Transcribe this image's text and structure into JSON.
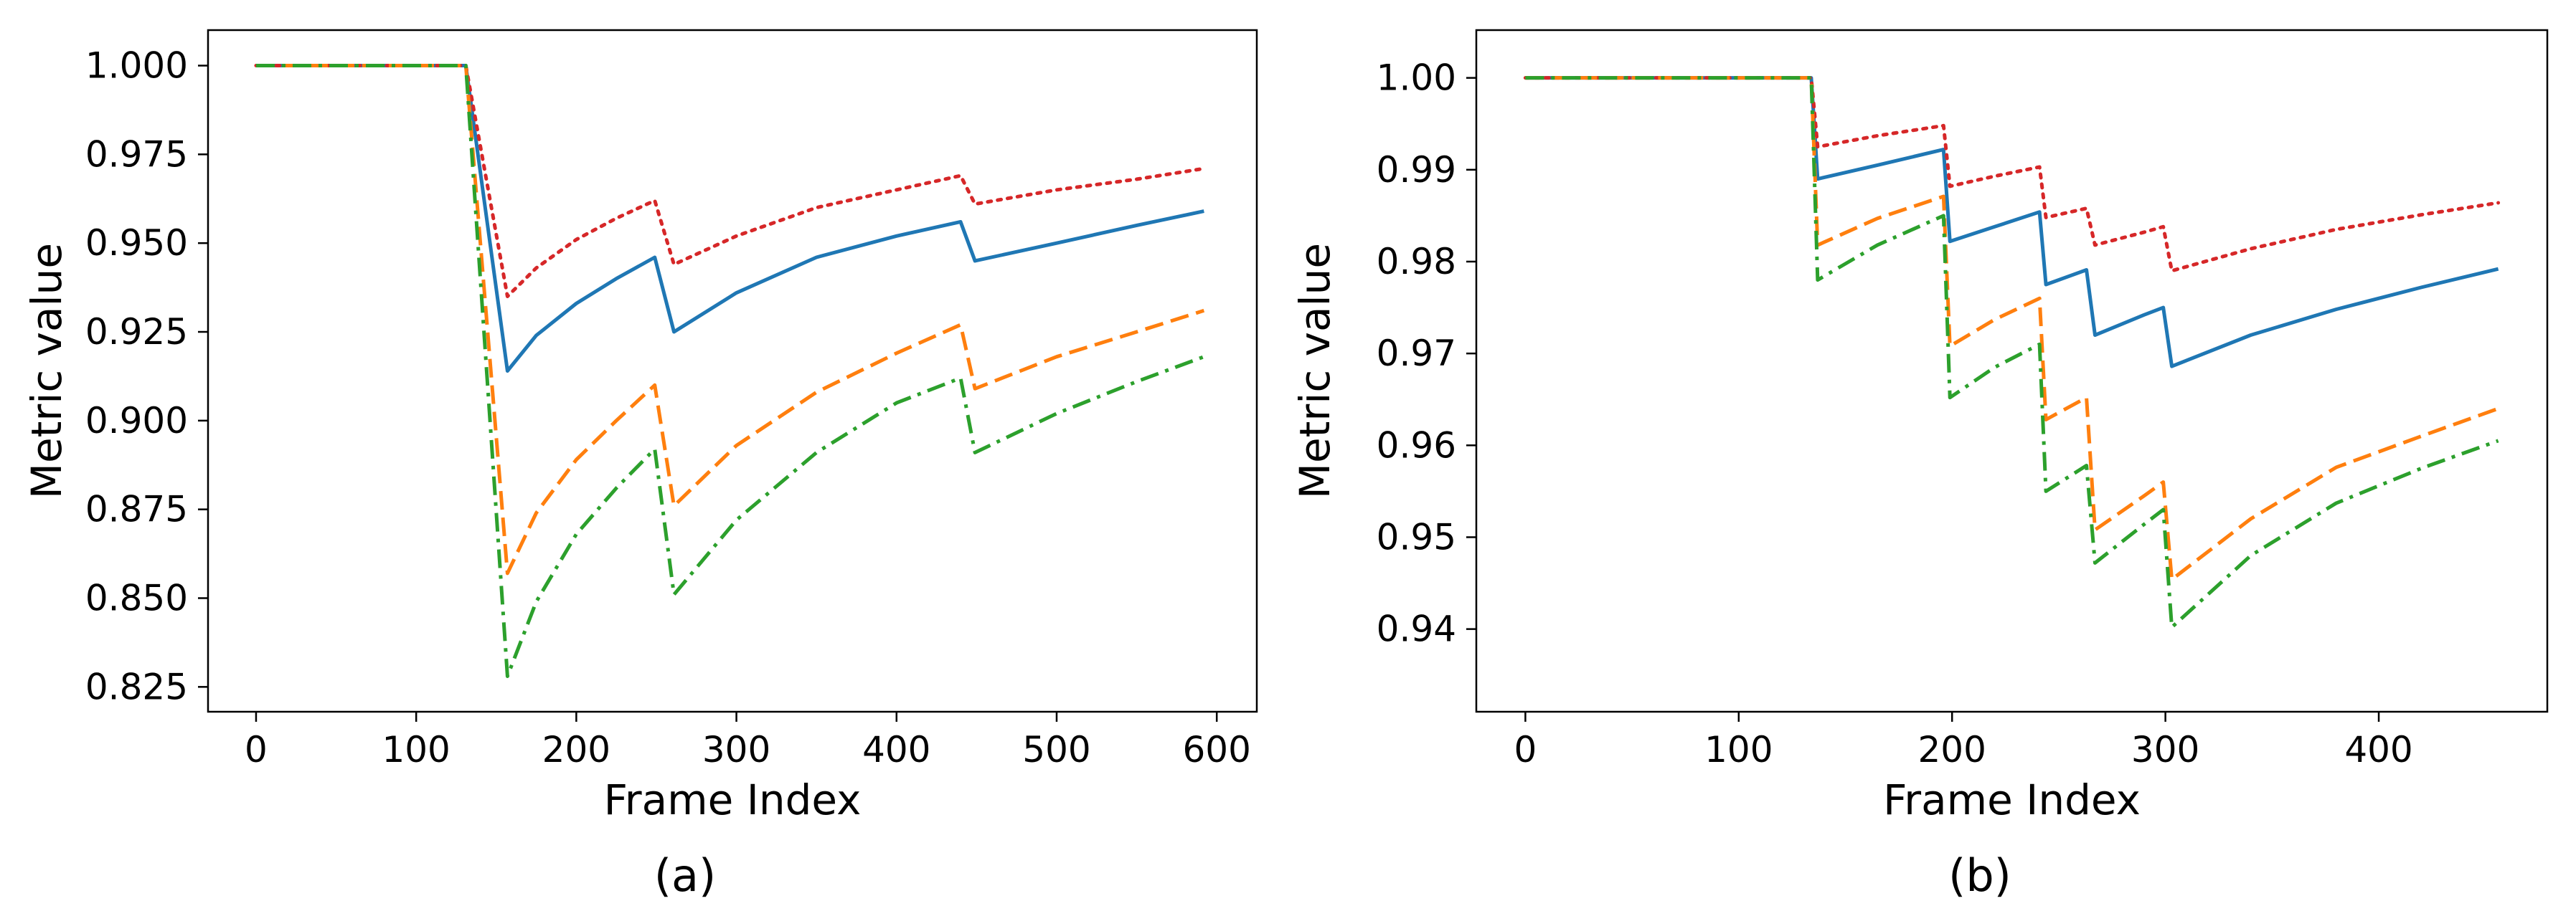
{
  "figure": {
    "captions": [
      "(a)",
      "(b)"
    ]
  },
  "chart_data": [
    {
      "type": "line",
      "title": "",
      "xlabel": "Frame Index",
      "ylabel": "Metric value",
      "xlim": [
        -30,
        625
      ],
      "ylim": [
        0.818,
        1.01
      ],
      "xticks": [
        0,
        100,
        200,
        300,
        400,
        500,
        600
      ],
      "xtick_labels": [
        "0",
        "100",
        "200",
        "300",
        "400",
        "500",
        "600"
      ],
      "yticks": [
        0.825,
        0.85,
        0.875,
        0.9,
        0.925,
        0.95,
        0.975,
        1.0
      ],
      "ytick_labels": [
        "0.825",
        "0.850",
        "0.875",
        "0.900",
        "0.925",
        "0.950",
        "0.975",
        "1.000"
      ],
      "grid": false,
      "series": [
        {
          "color": "#1f77b4",
          "style": "solid",
          "points": [
            [
              0,
              1.0
            ],
            [
              131,
              1.0
            ],
            [
              157,
              0.914
            ],
            [
              175,
              0.924
            ],
            [
              200,
              0.933
            ],
            [
              225,
              0.94
            ],
            [
              249,
              0.946
            ],
            [
              261,
              0.925
            ],
            [
              300,
              0.936
            ],
            [
              350,
              0.946
            ],
            [
              400,
              0.952
            ],
            [
              440,
              0.956
            ],
            [
              449,
              0.945
            ],
            [
              500,
              0.95
            ],
            [
              550,
              0.955
            ],
            [
              592,
              0.959
            ]
          ]
        },
        {
          "color": "#d62728",
          "style": "dotted",
          "points": [
            [
              0,
              1.0
            ],
            [
              131,
              1.0
            ],
            [
              157,
              0.935
            ],
            [
              175,
              0.943
            ],
            [
              200,
              0.951
            ],
            [
              225,
              0.957
            ],
            [
              249,
              0.962
            ],
            [
              261,
              0.944
            ],
            [
              300,
              0.952
            ],
            [
              350,
              0.96
            ],
            [
              400,
              0.965
            ],
            [
              440,
              0.969
            ],
            [
              449,
              0.961
            ],
            [
              500,
              0.965
            ],
            [
              550,
              0.968
            ],
            [
              592,
              0.971
            ]
          ]
        },
        {
          "color": "#ff7f0e",
          "style": "dashed",
          "points": [
            [
              0,
              1.0
            ],
            [
              131,
              1.0
            ],
            [
              157,
              0.857
            ],
            [
              175,
              0.874
            ],
            [
              200,
              0.889
            ],
            [
              225,
              0.9
            ],
            [
              249,
              0.91
            ],
            [
              261,
              0.876
            ],
            [
              300,
              0.893
            ],
            [
              350,
              0.908
            ],
            [
              400,
              0.919
            ],
            [
              440,
              0.927
            ],
            [
              449,
              0.909
            ],
            [
              500,
              0.918
            ],
            [
              550,
              0.925
            ],
            [
              592,
              0.931
            ]
          ]
        },
        {
          "color": "#2ca02c",
          "style": "dashdot",
          "points": [
            [
              0,
              1.0
            ],
            [
              131,
              1.0
            ],
            [
              157,
              0.828
            ],
            [
              175,
              0.849
            ],
            [
              200,
              0.868
            ],
            [
              225,
              0.881
            ],
            [
              249,
              0.892
            ],
            [
              261,
              0.851
            ],
            [
              300,
              0.872
            ],
            [
              350,
              0.891
            ],
            [
              400,
              0.905
            ],
            [
              440,
              0.912
            ],
            [
              449,
              0.891
            ],
            [
              500,
              0.902
            ],
            [
              550,
              0.911
            ],
            [
              592,
              0.918
            ]
          ]
        }
      ]
    },
    {
      "type": "line",
      "title": "",
      "xlabel": "Frame Index",
      "ylabel": "Metric value",
      "xlim": [
        -23,
        479
      ],
      "ylim": [
        0.931,
        1.0052
      ],
      "xticks": [
        0,
        100,
        200,
        300,
        400
      ],
      "xtick_labels": [
        "0",
        "100",
        "200",
        "300",
        "400"
      ],
      "yticks": [
        0.94,
        0.95,
        0.96,
        0.97,
        0.98,
        0.99,
        1.0
      ],
      "ytick_labels": [
        "0.94",
        "0.95",
        "0.96",
        "0.97",
        "0.98",
        "0.99",
        "1.00"
      ],
      "grid": false,
      "series": [
        {
          "color": "#1f77b4",
          "style": "solid",
          "points": [
            [
              0,
              1.0
            ],
            [
              134,
              1.0
            ],
            [
              137,
              0.989
            ],
            [
              165,
              0.9905
            ],
            [
              196,
              0.9922
            ],
            [
              199,
              0.9822
            ],
            [
              220,
              0.9838
            ],
            [
              241,
              0.9854
            ],
            [
              244,
              0.9775
            ],
            [
              263,
              0.9791
            ],
            [
              267,
              0.972
            ],
            [
              290,
              0.9742
            ],
            [
              299,
              0.975
            ],
            [
              303,
              0.9686
            ],
            [
              340,
              0.972
            ],
            [
              380,
              0.9748
            ],
            [
              420,
              0.9772
            ],
            [
              456,
              0.9792
            ]
          ]
        },
        {
          "color": "#d62728",
          "style": "dotted",
          "points": [
            [
              0,
              1.0
            ],
            [
              134,
              1.0
            ],
            [
              137,
              0.9925
            ],
            [
              165,
              0.9937
            ],
            [
              196,
              0.9948
            ],
            [
              199,
              0.9882
            ],
            [
              220,
              0.9893
            ],
            [
              241,
              0.9903
            ],
            [
              244,
              0.9848
            ],
            [
              263,
              0.9858
            ],
            [
              267,
              0.9818
            ],
            [
              290,
              0.9832
            ],
            [
              299,
              0.9838
            ],
            [
              303,
              0.979
            ],
            [
              340,
              0.9814
            ],
            [
              380,
              0.9835
            ],
            [
              420,
              0.9851
            ],
            [
              456,
              0.9864
            ]
          ]
        },
        {
          "color": "#ff7f0e",
          "style": "dashed",
          "points": [
            [
              0,
              1.0
            ],
            [
              134,
              1.0
            ],
            [
              137,
              0.9818
            ],
            [
              165,
              0.9847
            ],
            [
              196,
              0.9871
            ],
            [
              199,
              0.9708
            ],
            [
              220,
              0.9737
            ],
            [
              241,
              0.976
            ],
            [
              244,
              0.9628
            ],
            [
              263,
              0.9652
            ],
            [
              267,
              0.9508
            ],
            [
              290,
              0.9545
            ],
            [
              299,
              0.956
            ],
            [
              303,
              0.9454
            ],
            [
              340,
              0.952
            ],
            [
              380,
              0.9576
            ],
            [
              420,
              0.961
            ],
            [
              456,
              0.964
            ]
          ]
        },
        {
          "color": "#2ca02c",
          "style": "dashdot",
          "points": [
            [
              0,
              1.0
            ],
            [
              134,
              1.0
            ],
            [
              137,
              0.978
            ],
            [
              165,
              0.9818
            ],
            [
              196,
              0.985
            ],
            [
              199,
              0.9652
            ],
            [
              220,
              0.9685
            ],
            [
              241,
              0.971
            ],
            [
              244,
              0.955
            ],
            [
              263,
              0.9578
            ],
            [
              267,
              0.9472
            ],
            [
              290,
              0.9514
            ],
            [
              299,
              0.953
            ],
            [
              303,
              0.9402
            ],
            [
              340,
              0.948
            ],
            [
              380,
              0.9537
            ],
            [
              420,
              0.9575
            ],
            [
              456,
              0.9605
            ]
          ]
        }
      ]
    }
  ]
}
